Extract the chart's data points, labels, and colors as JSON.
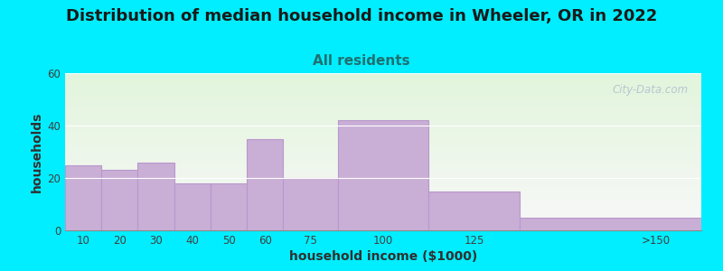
{
  "title": "Distribution of median household income in Wheeler, OR in 2022",
  "subtitle": "All residents",
  "xlabel": "household income ($1000)",
  "ylabel": "households",
  "bar_color": "#c9aed6",
  "bar_edgecolor": "#b898cc",
  "background_outer": "#00eeff",
  "ylim": [
    0,
    60
  ],
  "yticks": [
    0,
    20,
    40,
    60
  ],
  "title_fontsize": 13,
  "subtitle_fontsize": 11,
  "subtitle_color": "#207070",
  "axis_label_fontsize": 10,
  "watermark_text": "City-Data.com",
  "watermark_color": "#b0bece",
  "plot_bg_top": "#e2f5dc",
  "plot_bg_bottom": "#f8f8f8",
  "bins_left": [
    0,
    10,
    20,
    30,
    40,
    50,
    60,
    75,
    100,
    125
  ],
  "bins_right": [
    10,
    20,
    30,
    40,
    50,
    60,
    75,
    100,
    125,
    175
  ],
  "bin_labels": [
    "10",
    "20",
    "30",
    "40",
    "50",
    "60",
    "75",
    "100",
    "125",
    ">150"
  ],
  "values": [
    25,
    23,
    26,
    18,
    18,
    35,
    20,
    42,
    15,
    5
  ],
  "xmin": 0,
  "xmax": 175
}
